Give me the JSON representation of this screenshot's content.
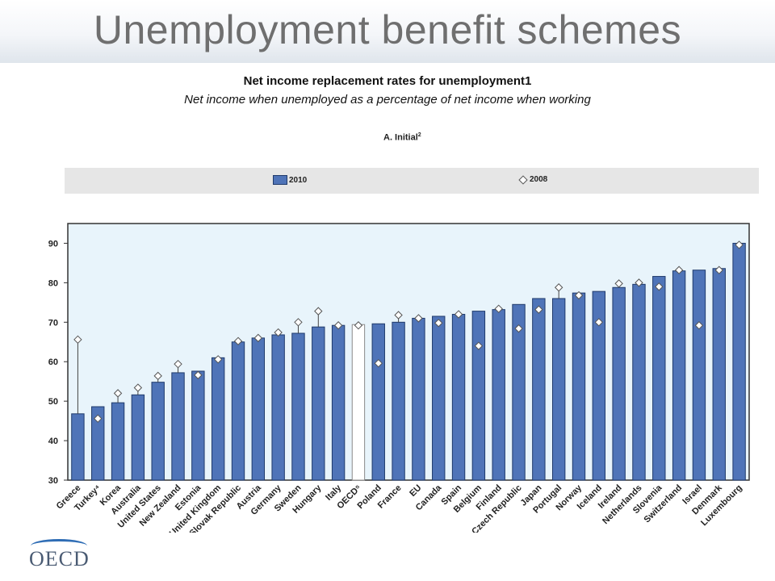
{
  "slide": {
    "title": "Unemployment benefit schemes",
    "logo": "OECD"
  },
  "chart_data": {
    "type": "bar",
    "title": "Net income replacement rates for unemployment1",
    "subtitle": "Net income when unemployed as a percentage of net income when working",
    "panel": "A. Initial",
    "panel_sup": "2",
    "legend_position": "top",
    "grid": false,
    "ylim": [
      30,
      95
    ],
    "yticks": [
      30,
      40,
      50,
      60,
      70,
      80,
      90
    ],
    "categories": [
      "Greece",
      "Turkey⁴",
      "Korea",
      "Australia",
      "United States",
      "New Zealand",
      "Estonia",
      "United Kingdom",
      "Slovak Republic",
      "Austria",
      "Germany",
      "Sweden",
      "Hungary",
      "Italy",
      "OECD⁵",
      "Poland",
      "France",
      "EU",
      "Canada",
      "Spain",
      "Belgium",
      "Finland",
      "Czech Republic",
      "Japan",
      "Portugal",
      "Norway",
      "Iceland",
      "Ireland",
      "Netherlands",
      "Slovenia",
      "Switzerland",
      "Israel",
      "Denmark",
      "Luxembourg"
    ],
    "highlight_category": "OECD⁵",
    "series": [
      {
        "name": "2010",
        "kind": "bar",
        "values": [
          46.8,
          48.6,
          49.6,
          51.6,
          54.8,
          57.2,
          57.6,
          61.0,
          65.0,
          66.0,
          66.8,
          67.2,
          68.8,
          69.2,
          69.4,
          69.6,
          70.0,
          71.0,
          71.5,
          72.0,
          72.8,
          73.2,
          74.5,
          76.0,
          76.0,
          77.4,
          77.8,
          78.8,
          79.6,
          81.6,
          83.0,
          83.2,
          83.6,
          90.0
        ]
      },
      {
        "name": "2008",
        "kind": "marker",
        "values": [
          65.6,
          45.6,
          52.0,
          53.4,
          56.4,
          59.4,
          56.6,
          60.6,
          65.2,
          66.0,
          67.4,
          70.0,
          72.8,
          69.2,
          69.2,
          59.6,
          71.8,
          71.0,
          69.8,
          72.0,
          64.0,
          73.4,
          68.4,
          73.2,
          78.8,
          76.8,
          70.0,
          79.8,
          80.0,
          79.0,
          83.2,
          69.2,
          83.2,
          89.6
        ]
      }
    ],
    "colors": {
      "bar": "#4f74b8",
      "bar_edge": "#1f3a6b",
      "highlight_bar": "#ffffff",
      "plot_bg": "#e8f4fb"
    }
  }
}
